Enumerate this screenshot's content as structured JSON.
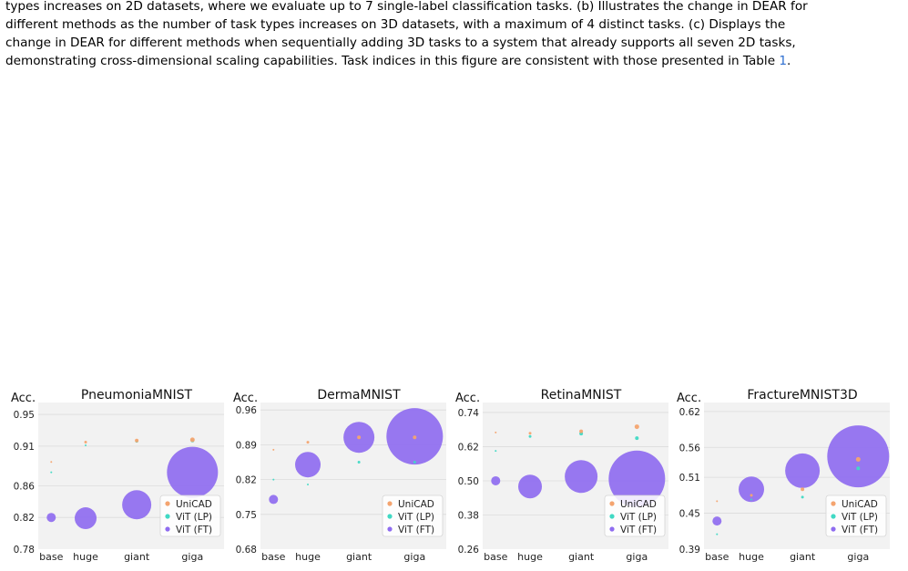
{
  "caption": {
    "line1": "types increases on 2D datasets, where we evaluate up to 7 single-label classification tasks. (b) Illustrates the change in DEAR for",
    "line2": "different methods as the number of task types increases on 3D datasets, with a maximum of 4 distinct tasks. (c) Displays the",
    "line3": "change in DEAR for different methods when sequentially adding 3D tasks to a system that already supports all seven 2D tasks,",
    "line4_text": "demonstrating cross-dimensional scaling capabilities. Task indices in this figure are consistent with those presented in Table ",
    "line4_ref": "1",
    "line4_end": "."
  },
  "colors": {
    "unicad": "#f4a46f",
    "vit_lp": "#40d9c4",
    "vit_ft": "#8f6cf0",
    "plot_bg": "#f2f2f2",
    "grid": "#dcdcdc"
  },
  "chart_data": [
    {
      "type": "scatter",
      "title": "PneumoniaMNIST",
      "ylabel": "Acc.",
      "categories": [
        "base",
        "huge",
        "giant",
        "giga"
      ],
      "yticks": [
        "0.78",
        "0.82",
        "0.86",
        "0.91",
        "0.95"
      ],
      "ylim": [
        0.78,
        0.965
      ],
      "grid": true,
      "legend": "bottom-right",
      "series": [
        {
          "name": "UniCAD",
          "values": [
            0.89,
            0.915,
            0.917,
            0.918
          ],
          "sizes": [
            1,
            3,
            4,
            5
          ]
        },
        {
          "name": "ViT (LP)",
          "values": [
            0.877,
            0.911,
            0.916,
            0.917
          ],
          "sizes": [
            1,
            2,
            3,
            4
          ]
        },
        {
          "name": "ViT (FT)",
          "values": [
            0.82,
            0.819,
            0.836,
            0.877
          ],
          "sizes": [
            10,
            24,
            32,
            56
          ]
        }
      ]
    },
    {
      "type": "scatter",
      "title": "DermaMNIST",
      "ylabel": "Acc.",
      "categories": [
        "base",
        "huge",
        "giant",
        "giga"
      ],
      "yticks": [
        "0.68",
        "0.75",
        "0.82",
        "0.89",
        "0.96"
      ],
      "ylim": [
        0.68,
        0.975
      ],
      "grid": true,
      "legend": "bottom-right",
      "series": [
        {
          "name": "UniCAD",
          "values": [
            0.88,
            0.895,
            0.905,
            0.905
          ],
          "sizes": [
            1,
            3,
            4,
            4
          ]
        },
        {
          "name": "ViT (LP)",
          "values": [
            0.82,
            0.81,
            0.855,
            0.855
          ],
          "sizes": [
            1,
            2,
            3,
            3
          ]
        },
        {
          "name": "ViT (FT)",
          "values": [
            0.78,
            0.85,
            0.905,
            0.907
          ],
          "sizes": [
            10,
            28,
            34,
            62
          ]
        }
      ]
    },
    {
      "type": "scatter",
      "title": "RetinaMNIST",
      "ylabel": "Acc.",
      "categories": [
        "base",
        "huge",
        "giant",
        "giga"
      ],
      "yticks": [
        "0.26",
        "0.38",
        "0.50",
        "0.62",
        "0.74"
      ],
      "ylim": [
        0.26,
        0.775
      ],
      "grid": true,
      "legend": "bottom-right",
      "series": [
        {
          "name": "UniCAD",
          "values": [
            0.67,
            0.667,
            0.674,
            0.69
          ],
          "sizes": [
            1,
            3,
            4,
            5
          ]
        },
        {
          "name": "ViT (LP)",
          "values": [
            0.605,
            0.656,
            0.666,
            0.65
          ],
          "sizes": [
            2,
            3,
            4,
            4
          ]
        },
        {
          "name": "ViT (FT)",
          "values": [
            0.5,
            0.48,
            0.515,
            0.507
          ],
          "sizes": [
            10,
            26,
            36,
            62
          ]
        }
      ]
    },
    {
      "type": "scatter",
      "title": "FractureMNIST3D",
      "ylabel": "Acc.",
      "categories": [
        "base",
        "huge",
        "giant",
        "giga"
      ],
      "yticks": [
        "0.39",
        "0.45",
        "0.51",
        "0.56",
        "0.62"
      ],
      "ylim": [
        0.39,
        0.635
      ],
      "grid": true,
      "legend": "bottom-right",
      "series": [
        {
          "name": "UniCAD",
          "values": [
            0.47,
            0.48,
            0.49,
            0.54
          ],
          "sizes": [
            2,
            3,
            4,
            5
          ]
        },
        {
          "name": "ViT (LP)",
          "values": [
            0.415,
            0.473,
            0.477,
            0.525
          ],
          "sizes": [
            1,
            2,
            3,
            4
          ]
        },
        {
          "name": "ViT (FT)",
          "values": [
            0.437,
            0.49,
            0.521,
            0.545
          ],
          "sizes": [
            10,
            28,
            38,
            68
          ]
        }
      ]
    }
  ]
}
